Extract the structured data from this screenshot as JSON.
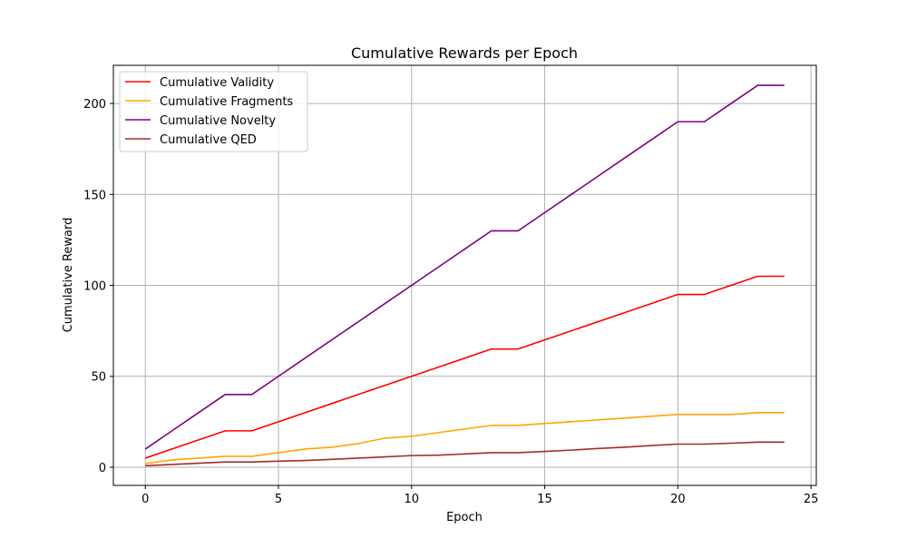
{
  "chart_data": {
    "type": "line",
    "title": "Cumulative Rewards per Epoch",
    "xlabel": "Epoch",
    "ylabel": "Cumulative Reward",
    "xlim": [
      -1.2,
      25.2
    ],
    "ylim": [
      -10,
      221
    ],
    "x_ticks": [
      0,
      5,
      10,
      15,
      20,
      25
    ],
    "y_ticks": [
      0,
      50,
      100,
      150,
      200
    ],
    "grid": true,
    "legend_position": "top-left",
    "x": [
      0,
      1,
      2,
      3,
      4,
      5,
      6,
      7,
      8,
      9,
      10,
      11,
      12,
      13,
      14,
      15,
      16,
      17,
      18,
      19,
      20,
      21,
      22,
      23,
      24
    ],
    "series": [
      {
        "name": "Cumulative Validity",
        "color": "#ff0000",
        "values": [
          5,
          10,
          15,
          20,
          20,
          25,
          30,
          35,
          40,
          45,
          50,
          55,
          60,
          65,
          65,
          70,
          75,
          80,
          85,
          90,
          95,
          95,
          100,
          105,
          105
        ]
      },
      {
        "name": "Cumulative Fragments",
        "color": "#ffa500",
        "values": [
          2,
          4,
          5,
          6,
          6,
          8,
          10,
          11,
          13,
          16,
          17,
          19,
          21,
          23,
          23,
          24,
          25,
          26,
          27,
          28,
          29,
          29,
          29,
          30,
          30
        ]
      },
      {
        "name": "Cumulative Novelty",
        "color": "#800080",
        "values": [
          10,
          20,
          30,
          40,
          40,
          50,
          60,
          70,
          80,
          90,
          100,
          110,
          120,
          130,
          130,
          140,
          150,
          160,
          170,
          180,
          190,
          190,
          200,
          210,
          210
        ]
      },
      {
        "name": "Cumulative QED",
        "color": "#a52a2a",
        "values": [
          0.8,
          1.5,
          2.2,
          2.9,
          2.9,
          3.3,
          3.7,
          4.3,
          5.0,
          5.7,
          6.4,
          6.6,
          7.3,
          8.0,
          8.0,
          8.7,
          9.4,
          10.3,
          11.0,
          11.9,
          12.7,
          12.7,
          13.2,
          13.8,
          13.8
        ]
      }
    ]
  }
}
